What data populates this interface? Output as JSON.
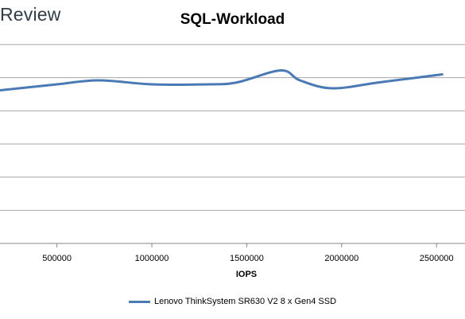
{
  "brand": {
    "text": "Review"
  },
  "chart_data": {
    "type": "line",
    "title": "SQL-Workload",
    "xlabel": "IOPS",
    "ylabel": "",
    "xlim": [
      200000,
      2650000
    ],
    "ylim": [
      0,
      10
    ],
    "x_ticks": [
      500000,
      1000000,
      1500000,
      2000000,
      2500000
    ],
    "x_tick_labels": [
      "500000",
      "1000000",
      "1500000",
      "2000000",
      "2500000"
    ],
    "grid": true,
    "legend_position": "bottom",
    "series": [
      {
        "name": "Lenovo ThinkSystem SR630 V2 8 x Gen4 SSD",
        "color": "#4a7ab5",
        "points": [
          [
            200000,
            7.7
          ],
          [
            500000,
            8.0
          ],
          [
            720000,
            8.2
          ],
          [
            1000000,
            8.0
          ],
          [
            1300000,
            8.0
          ],
          [
            1450000,
            8.1
          ],
          [
            1680000,
            8.7
          ],
          [
            1780000,
            8.2
          ],
          [
            1950000,
            7.8
          ],
          [
            2200000,
            8.1
          ],
          [
            2530000,
            8.5
          ]
        ]
      }
    ]
  }
}
